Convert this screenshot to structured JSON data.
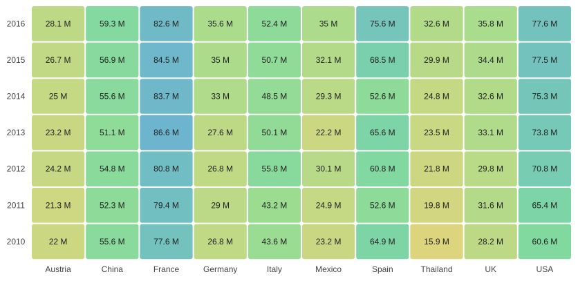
{
  "chart_data": {
    "type": "heatmap",
    "title": "",
    "xlabel": "",
    "ylabel": "",
    "x_categories": [
      "Austria",
      "China",
      "France",
      "Germany",
      "Italy",
      "Mexico",
      "Spain",
      "Thailand",
      "UK",
      "USA"
    ],
    "y_categories": [
      "2016",
      "2015",
      "2014",
      "2013",
      "2012",
      "2011",
      "2010"
    ],
    "values": [
      [
        28.1,
        59.3,
        82.6,
        35.6,
        52.4,
        35,
        75.6,
        32.6,
        35.8,
        77.6
      ],
      [
        26.7,
        56.9,
        84.5,
        35,
        50.7,
        32.1,
        68.5,
        29.9,
        34.4,
        77.5
      ],
      [
        25,
        55.6,
        83.7,
        33,
        48.5,
        29.3,
        52.6,
        24.8,
        32.6,
        75.3
      ],
      [
        23.2,
        51.1,
        86.6,
        27.6,
        50.1,
        22.2,
        65.6,
        23.5,
        33.1,
        73.8
      ],
      [
        24.2,
        54.8,
        80.8,
        26.8,
        55.8,
        30.1,
        60.8,
        21.8,
        29.8,
        70.8
      ],
      [
        21.3,
        52.3,
        79.4,
        29,
        43.2,
        24.9,
        52.6,
        19.8,
        31.6,
        65.4
      ],
      [
        22,
        55.6,
        77.6,
        26.8,
        43.6,
        23.2,
        64.9,
        15.9,
        28.2,
        60.6
      ]
    ],
    "value_suffix": " M",
    "color_scale": [
      "#DCD57E",
      "#A0DD8E",
      "#7ED8A2",
      "#6DB4CF"
    ],
    "value_range": [
      15.9,
      86.6
    ],
    "grid": false,
    "legend": "none"
  }
}
